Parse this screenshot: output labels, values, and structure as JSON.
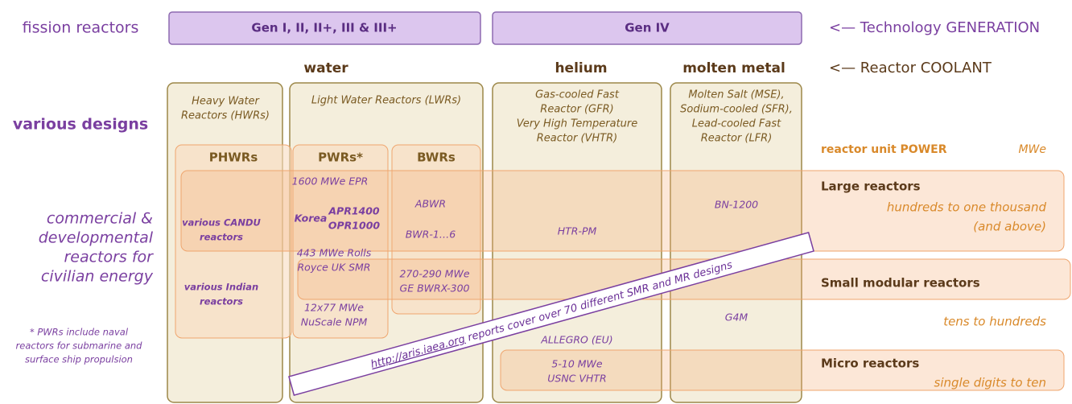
{
  "row_labels": {
    "generation": "fission reactors",
    "designs": "various designs",
    "commercial": [
      "commercial &",
      "developmental",
      "reactors for",
      "civilian energy"
    ],
    "footnote": [
      "* PWRs include naval",
      "reactors for submarine and",
      "surface ship propulsion"
    ]
  },
  "generations": [
    "Gen I, II, II+, III & III+",
    "Gen IV"
  ],
  "generation_note": "<— Technology GENERATION",
  "coolants": [
    "water",
    "helium",
    "molten metal"
  ],
  "coolant_note": "<— Reactor COOLANT",
  "design_groups": [
    [
      "Heavy Water",
      "Reactors (HWRs)"
    ],
    [
      "Light Water Reactors (LWRs)"
    ],
    [
      "Gas-cooled Fast",
      "Reactor (GFR)",
      "Very High Temperature",
      "Reactor (VHTR)"
    ],
    [
      "Molten Salt (MSE),",
      "Sodium-cooled (SFR),",
      "Lead-cooled Fast",
      "Reactor (LFR)"
    ]
  ],
  "subtypes": [
    "PHWRs",
    "PWRs*",
    "BWRs"
  ],
  "power": {
    "title": "reactor unit POWER",
    "unit": "MWe"
  },
  "classes": [
    {
      "name": "Large reactors",
      "range": [
        "hundreds to one thousand",
        "(and above)"
      ]
    },
    {
      "name": "Small modular reactors",
      "range": [
        "tens to hundreds"
      ]
    },
    {
      "name": "Micro reactors",
      "range": [
        "single digits to ten"
      ]
    }
  ],
  "examples": [
    [
      "various CANDU",
      "reactors"
    ],
    [
      "various Indian",
      "reactors"
    ],
    [
      "1600 MWe EPR"
    ],
    [
      "Korea",
      "APR1400",
      "OPR1000"
    ],
    [
      "443 MWe Rolls",
      "Royce UK SMR"
    ],
    [
      "12x77 MWe",
      "NuScale NPM"
    ],
    [
      "ABWR"
    ],
    [
      "BWR-1…6"
    ],
    [
      "270-290 MWe",
      "GE BWRX-300"
    ],
    [
      "HTR-PM"
    ],
    [
      "ALLEGRO (EU)"
    ],
    [
      "5-10 MWe",
      "USNC VHTR"
    ],
    [
      "BN-1200"
    ],
    [
      "G4M"
    ]
  ],
  "banner": {
    "link": "http://aris.iaea.org",
    "text": " reports cover over 70 different SMR and MR designs"
  }
}
